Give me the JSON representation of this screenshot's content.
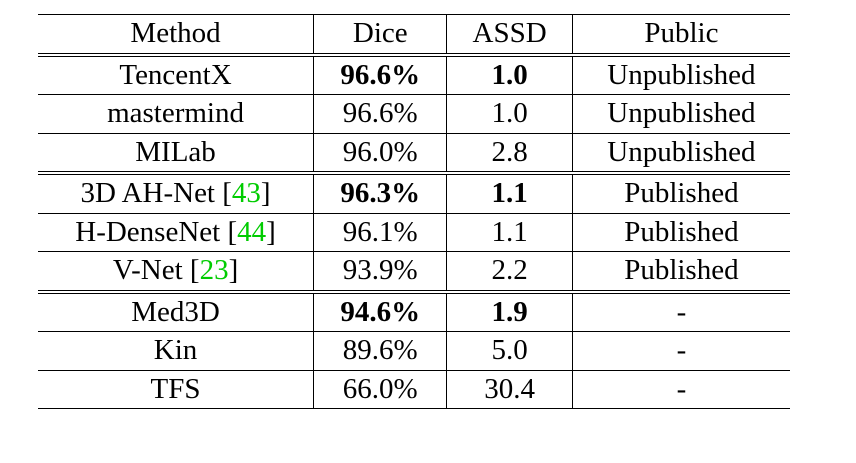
{
  "headers": [
    "Method",
    "Dice",
    "ASSD",
    "Public"
  ],
  "groups": [
    [
      {
        "method": "TencentX",
        "ref": "",
        "dice": "96.6%",
        "assd": "1.0",
        "public": "Unpublished",
        "bold": true
      },
      {
        "method": "mastermind",
        "ref": "",
        "dice": "96.6%",
        "assd": "1.0",
        "public": "Unpublished",
        "bold": false
      },
      {
        "method": "MILab",
        "ref": "",
        "dice": "96.0%",
        "assd": "2.8",
        "public": "Unpublished",
        "bold": false
      }
    ],
    [
      {
        "method": "3D AH-Net",
        "ref": "43",
        "dice": "96.3%",
        "assd": "1.1",
        "public": "Published",
        "bold": true
      },
      {
        "method": "H-DenseNet",
        "ref": "44",
        "dice": "96.1%",
        "assd": "1.1",
        "public": "Published",
        "bold": false
      },
      {
        "method": "V-Net",
        "ref": "23",
        "dice": "93.9%",
        "assd": "2.2",
        "public": "Published",
        "bold": false
      }
    ],
    [
      {
        "method": "Med3D",
        "ref": "",
        "dice": "94.6%",
        "assd": "1.9",
        "public": "-",
        "bold": true
      },
      {
        "method": "Kin",
        "ref": "",
        "dice": "89.6%",
        "assd": "5.0",
        "public": "-",
        "bold": false
      },
      {
        "method": "TFS",
        "ref": "",
        "dice": "66.0%",
        "assd": "30.4",
        "public": "-",
        "bold": false
      }
    ]
  ],
  "colors": {
    "reference_link": "#00cc00",
    "text": "#000000",
    "rule": "#000000"
  }
}
